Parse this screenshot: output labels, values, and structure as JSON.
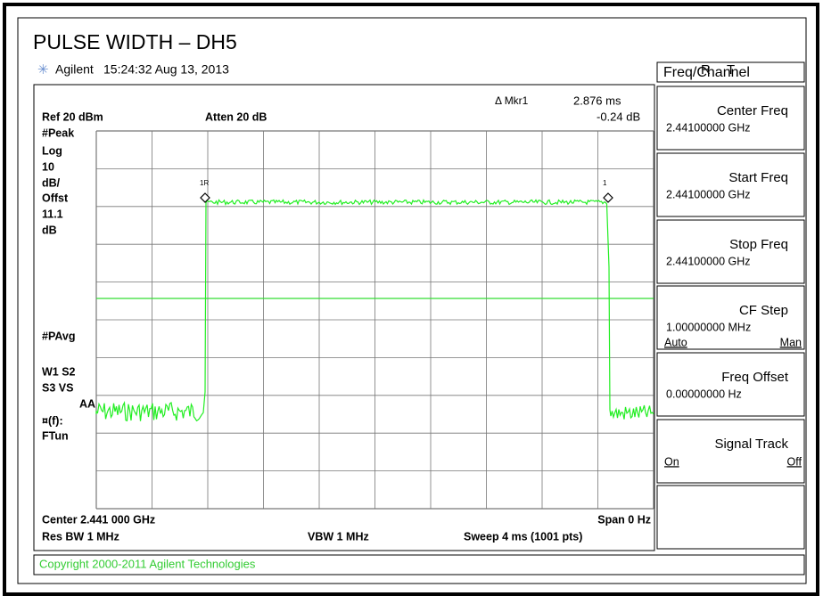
{
  "title": "PULSE WIDTH – DH5",
  "header": {
    "brand": "Agilent",
    "timestamp": "15:24:32  Aug 13, 2013",
    "indicators": [
      "R",
      "T"
    ]
  },
  "menu": {
    "title": "Freq/Channel",
    "softkeys": [
      {
        "label": "Center Freq",
        "value": "2.44100000 GHz"
      },
      {
        "label": "Start Freq",
        "value": "2.44100000 GHz"
      },
      {
        "label": "Stop Freq",
        "value": "2.44100000 GHz"
      },
      {
        "label": "CF Step",
        "value": "1.00000000 MHz",
        "left": "Auto",
        "right": "Man"
      },
      {
        "label": "Freq Offset",
        "value": "0.00000000  Hz"
      },
      {
        "label": "Signal Track",
        "left": "On",
        "right": "Off"
      }
    ]
  },
  "display": {
    "ref": "Ref 20 dBm",
    "atten": "Atten 20 dB",
    "marker": "Δ Mkr1",
    "marker_time": "2.876 ms",
    "marker_level": "-0.24 dB",
    "left_labels": [
      "#Peak",
      "Log",
      "10",
      "dB/",
      "Offst",
      "11.1",
      "dB",
      "#PAvg",
      "W1  S2",
      "S3  VS",
      "AA",
      "¤(f):",
      "FTun"
    ],
    "marker_labels": [
      "1R",
      "1"
    ],
    "center": "Center 2.441 000 GHz",
    "span": "Span 0 Hz",
    "rbw": "Res BW 1 MHz",
    "vbw": "VBW 1 MHz",
    "sweep": "Sweep 4 ms (1001 pts)"
  },
  "footer": "Copyright 2000-2011 Agilent Technologies"
}
